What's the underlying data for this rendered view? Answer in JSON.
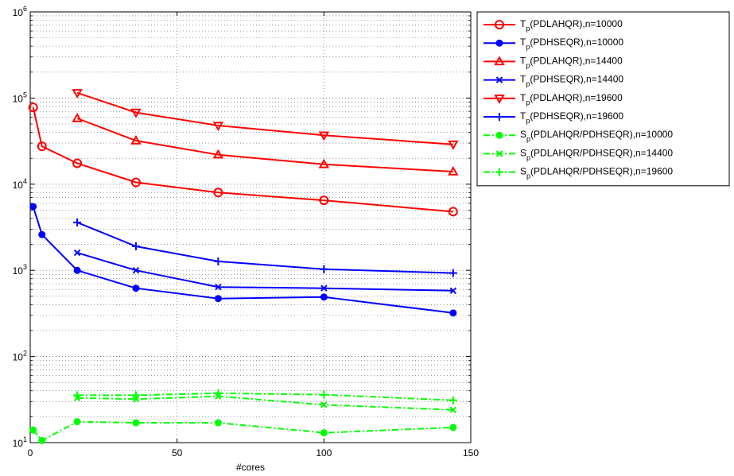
{
  "chart_data": {
    "type": "line",
    "title": "",
    "xlabel": "#cores",
    "ylabel": "",
    "xlim": [
      0,
      150
    ],
    "ylim": [
      10,
      1000000
    ],
    "yscale": "log",
    "grid": true,
    "grid_style": "dotted",
    "legend_position": "outside-right-top",
    "x_ticks": [
      {
        "value": 0,
        "label": "0"
      },
      {
        "value": 50,
        "label": "50"
      },
      {
        "value": 100,
        "label": "100"
      },
      {
        "value": 150,
        "label": "150"
      }
    ],
    "y_ticks": [
      {
        "value": 10,
        "base": "10",
        "exp": "1"
      },
      {
        "value": 100,
        "base": "10",
        "exp": "2"
      },
      {
        "value": 1000,
        "base": "10",
        "exp": "3"
      },
      {
        "value": 10000,
        "base": "10",
        "exp": "4"
      },
      {
        "value": 100000,
        "base": "10",
        "exp": "5"
      },
      {
        "value": 1000000,
        "base": "10",
        "exp": "6"
      }
    ],
    "series": [
      {
        "main": "T",
        "sub": "p",
        "rest": "(PDLAHQR),n=10000",
        "color": "#ff0000",
        "marker": "circle-open",
        "dash": "solid",
        "x": [
          1,
          4,
          16,
          36,
          64,
          100,
          144
        ],
        "values": [
          78000,
          27500,
          17500,
          10500,
          8000,
          6500,
          4800
        ]
      },
      {
        "main": "T",
        "sub": "p",
        "rest": "(PDHSEQR),n=10000",
        "color": "#0000ff",
        "marker": "circle-filled",
        "dash": "solid",
        "x": [
          1,
          4,
          16,
          36,
          64,
          100,
          144
        ],
        "values": [
          5500,
          2600,
          1000,
          620,
          470,
          490,
          320
        ]
      },
      {
        "main": "T",
        "sub": "p",
        "rest": "(PDLAHQR),n=14400",
        "color": "#ff0000",
        "marker": "triangle-up",
        "dash": "solid",
        "x": [
          16,
          36,
          64,
          100,
          144
        ],
        "values": [
          58000,
          32000,
          22000,
          17000,
          14000
        ]
      },
      {
        "main": "T",
        "sub": "p",
        "rest": "(PDHSEQR),n=14400",
        "color": "#0000ff",
        "marker": "x",
        "dash": "solid",
        "x": [
          16,
          36,
          64,
          100,
          144
        ],
        "values": [
          1600,
          1000,
          640,
          620,
          580
        ]
      },
      {
        "main": "T",
        "sub": "p",
        "rest": "(PDLAHQR),n=19600",
        "color": "#ff0000",
        "marker": "triangle-down",
        "dash": "solid",
        "x": [
          16,
          36,
          64,
          100,
          144
        ],
        "values": [
          115000,
          68000,
          48000,
          37000,
          29000
        ]
      },
      {
        "main": "T",
        "sub": "p",
        "rest": "(PDHSEQR),n=19600",
        "color": "#0000ff",
        "marker": "plus",
        "dash": "solid",
        "x": [
          16,
          36,
          64,
          100,
          144
        ],
        "values": [
          3600,
          1900,
          1270,
          1030,
          930
        ]
      },
      {
        "main": "S",
        "sub": "p",
        "rest": "(PDLAHQR/PDHSEQR),n=10000",
        "color": "#00ff00",
        "marker": "circle-filled",
        "dash": "dashdot",
        "x": [
          1,
          4,
          16,
          36,
          64,
          100,
          144
        ],
        "values": [
          14,
          10.6,
          17.5,
          17,
          17,
          13,
          15
        ]
      },
      {
        "main": "S",
        "sub": "p",
        "rest": "(PDLAHQR/PDHSEQR),n=14400",
        "color": "#00ff00",
        "marker": "x",
        "dash": "dashdot",
        "x": [
          16,
          36,
          64,
          100,
          144
        ],
        "values": [
          33,
          32,
          34.5,
          27.5,
          24
        ]
      },
      {
        "main": "S",
        "sub": "p",
        "rest": "(PDLAHQR/PDHSEQR),n=19600",
        "color": "#00ff00",
        "marker": "plus",
        "dash": "dashdot",
        "x": [
          16,
          36,
          64,
          100,
          144
        ],
        "values": [
          35.5,
          35.5,
          37.5,
          36,
          31
        ]
      }
    ]
  }
}
